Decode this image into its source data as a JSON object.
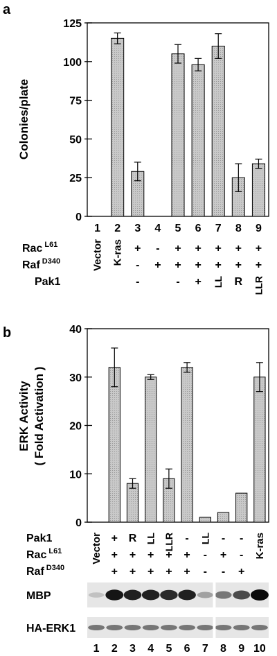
{
  "chart_data": [
    {
      "panel_label": "a",
      "type": "bar",
      "ylabel": "Colonies/plate",
      "ylim": [
        0,
        125
      ],
      "yticks": [
        0,
        25,
        50,
        75,
        100,
        125
      ],
      "categories": [
        "1",
        "2",
        "3",
        "4",
        "5",
        "6",
        "7",
        "8",
        "9"
      ],
      "values": [
        0,
        115,
        29,
        0,
        105,
        98,
        110,
        25,
        34
      ],
      "errors": [
        0,
        3.5,
        6,
        0,
        6,
        4,
        8,
        9,
        3
      ],
      "conditions": [
        {
          "label": "",
          "values": [
            "Vector",
            "K-ras",
            "",
            "",
            "",
            "",
            "",
            "",
            ""
          ]
        },
        {
          "label": "Rac",
          "sup": "L61",
          "values": [
            "",
            "",
            "+",
            "-",
            "+",
            "+",
            "+",
            "+",
            "+"
          ]
        },
        {
          "label": "Raf",
          "sup": "D340",
          "values": [
            "",
            "",
            "-",
            "+",
            "+",
            "+",
            "+",
            "+",
            "+"
          ]
        },
        {
          "label": "Pak1",
          "sup": "",
          "values": [
            "",
            "",
            "-",
            "",
            "-",
            "+",
            "LL",
            "R",
            "LLR"
          ]
        }
      ]
    },
    {
      "panel_label": "b",
      "type": "bar",
      "ylabel": "ERK Activity",
      "ylabel2": "( Fold Activation )",
      "ylim": [
        0,
        40
      ],
      "yticks": [
        0,
        10,
        20,
        30,
        40
      ],
      "categories": [
        "1",
        "2",
        "3",
        "4",
        "5",
        "6",
        "7",
        "8",
        "9",
        "10"
      ],
      "values": [
        0,
        32,
        8,
        30,
        9,
        32,
        1,
        2,
        6,
        30
      ],
      "errors": [
        0,
        4,
        1,
        0.5,
        2,
        1,
        0,
        0,
        0,
        3
      ],
      "conditions": [
        {
          "label": "Pak1",
          "sup": "",
          "values": [
            "",
            "+",
            "R",
            "LL",
            "LLR",
            "-",
            "LL",
            "-",
            "-",
            ""
          ]
        },
        {
          "label": "Rac",
          "sup": "L61",
          "values": [
            "",
            "+",
            "+",
            "+",
            "+",
            "+",
            "-",
            "+",
            "-",
            ""
          ]
        },
        {
          "label": "Raf",
          "sup": "D340",
          "values": [
            "",
            "+",
            "+",
            "+",
            "+",
            "+",
            "-",
            "-",
            "+",
            ""
          ]
        }
      ],
      "rotated_labels": [
        "Vector",
        "K-ras"
      ],
      "blots": [
        {
          "label": "MBP",
          "intensities": [
            0.15,
            0.95,
            0.9,
            0.9,
            0.85,
            0.9,
            0.3,
            0.5,
            0.7,
            1.0
          ]
        },
        {
          "label": "HA-ERK1",
          "intensities": [
            0.5,
            0.5,
            0.5,
            0.5,
            0.5,
            0.5,
            0.5,
            0.5,
            0.5,
            0.5
          ]
        }
      ]
    }
  ]
}
